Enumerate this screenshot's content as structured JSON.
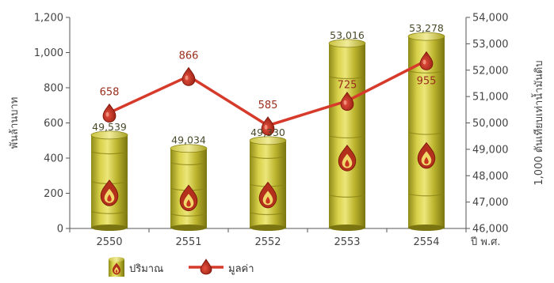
{
  "chart_data": {
    "type": "bar+line",
    "title": "",
    "categories": [
      "2550",
      "2551",
      "2552",
      "2553",
      "2554"
    ],
    "xlabel": "ปี พ.ศ.",
    "y_left": {
      "label": "พันล้านบาท",
      "range": [
        0,
        1200
      ],
      "ticks": [
        "0",
        "200",
        "400",
        "600",
        "800",
        "1,000",
        "1,200"
      ]
    },
    "y_right": {
      "label": "1,000 ตันเทียบเท่าน้ำมันดิบ",
      "range": [
        46000,
        54000
      ],
      "ticks": [
        "46,000",
        "47,000",
        "48,000",
        "49,000",
        "50,000",
        "51,000",
        "52,000",
        "53,000",
        "54,000"
      ]
    },
    "series": [
      {
        "name": "ปริมาณ",
        "kind": "bar",
        "axis": "right",
        "values": [
          49539,
          49034,
          49330,
          53016,
          53278
        ],
        "labels": [
          "49,539",
          "49,034",
          "49,330",
          "53,016",
          "53,278"
        ],
        "color": "#b9b12c"
      },
      {
        "name": "มูลค่า",
        "kind": "line",
        "axis": "left",
        "values": [
          658,
          866,
          585,
          725,
          955
        ],
        "labels": [
          "658",
          "866",
          "585",
          "725",
          "955"
        ],
        "color": "#d63a2a"
      }
    ],
    "grid": false,
    "legend": "bottom-left"
  }
}
